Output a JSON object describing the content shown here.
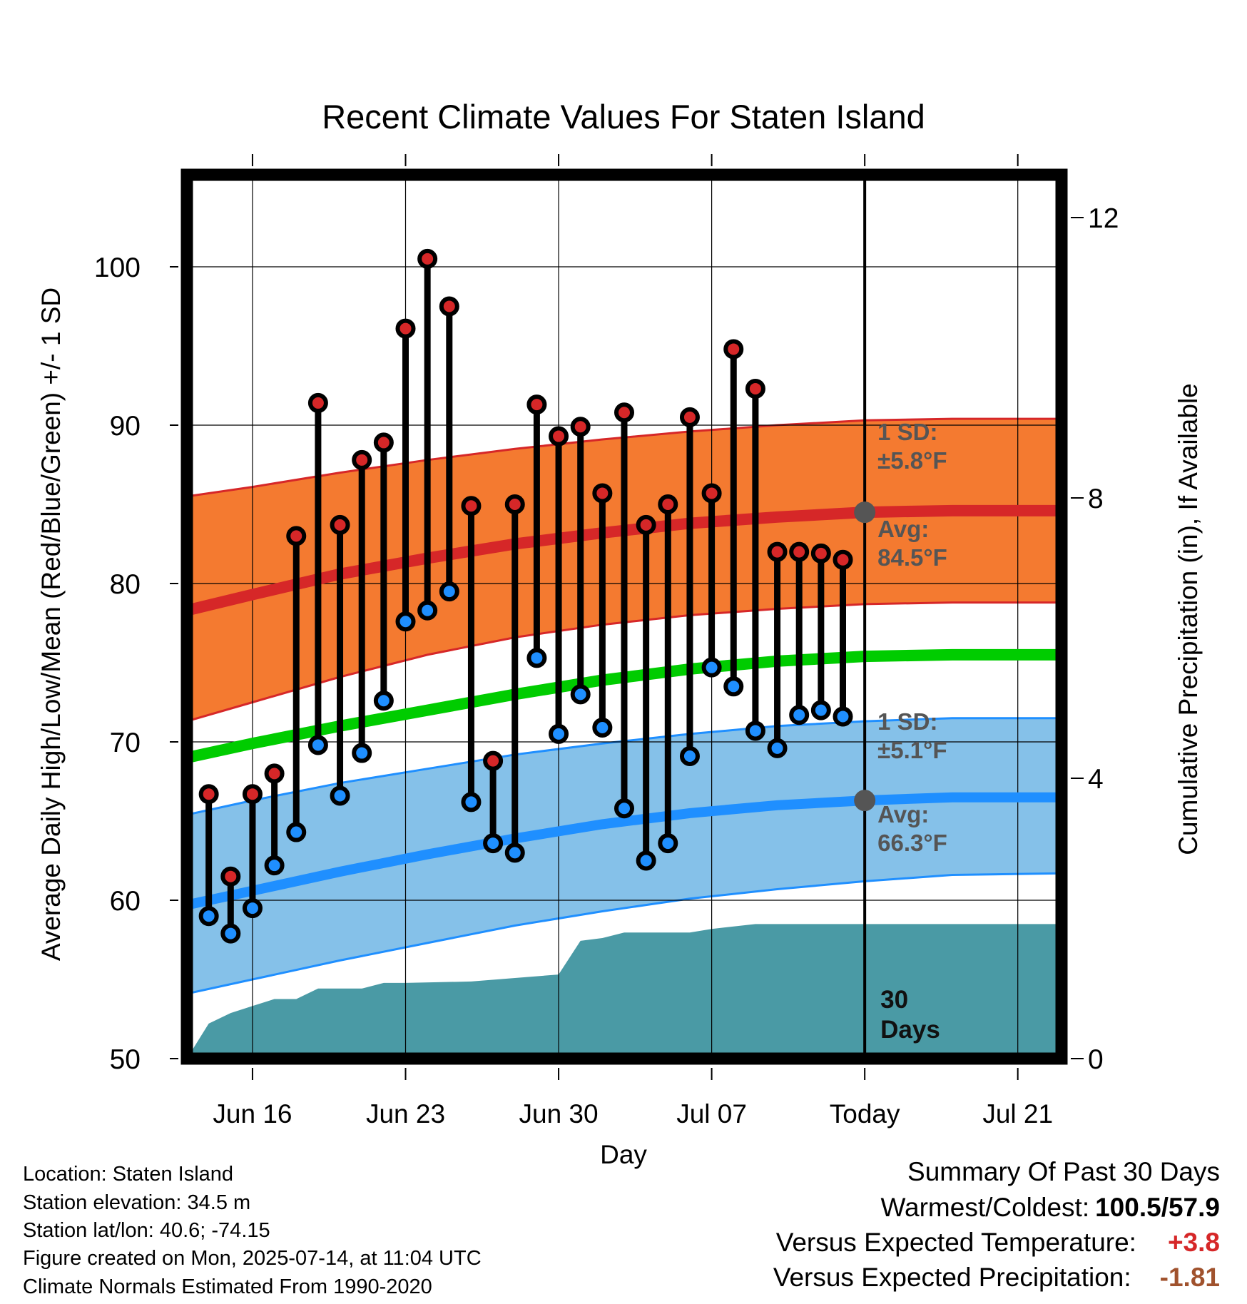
{
  "chart_data": {
    "type": "line",
    "title": "Recent Climate Values For Staten Island",
    "xlabel": "Day",
    "ylabel": "Average Daily High/Low/Mean (Red/Blue/Green) +/- 1 SD",
    "y2label": "Cumulative Precipitation (in), If Available",
    "ylim": [
      50,
      105
    ],
    "y2lim": [
      0,
      16
    ],
    "yticks": [
      50,
      60,
      70,
      80,
      90,
      100
    ],
    "y2ticks": [
      0,
      4,
      8,
      12
    ],
    "xticks": [
      "Jun 16",
      "Jun 23",
      "Jun 30",
      "Jul 07",
      "Today",
      "Jul 21"
    ],
    "x_start": "2025-06-13",
    "x_end": "2025-07-23",
    "today": "2025-07-14",
    "grid": true,
    "series": [
      {
        "name": "Daily High",
        "color": "#d62728",
        "x": [
          "2025-06-14",
          "2025-06-15",
          "2025-06-16",
          "2025-06-17",
          "2025-06-18",
          "2025-06-19",
          "2025-06-20",
          "2025-06-21",
          "2025-06-22",
          "2025-06-23",
          "2025-06-24",
          "2025-06-25",
          "2025-06-26",
          "2025-06-27",
          "2025-06-28",
          "2025-06-29",
          "2025-06-30",
          "2025-07-01",
          "2025-07-02",
          "2025-07-03",
          "2025-07-04",
          "2025-07-05",
          "2025-07-06",
          "2025-07-07",
          "2025-07-08",
          "2025-07-09",
          "2025-07-10",
          "2025-07-11",
          "2025-07-12",
          "2025-07-13"
        ],
        "values": [
          66.7,
          61.5,
          66.7,
          68.0,
          83.0,
          91.4,
          83.7,
          87.8,
          88.9,
          96.1,
          100.5,
          97.5,
          84.9,
          68.8,
          85.0,
          91.3,
          89.3,
          89.9,
          85.7,
          90.8,
          83.7,
          85.0,
          90.5,
          85.7,
          94.8,
          92.3,
          82.0,
          82.0,
          81.9,
          81.5
        ]
      },
      {
        "name": "Daily Low",
        "color": "#1f8fff",
        "x": [
          "2025-06-14",
          "2025-06-15",
          "2025-06-16",
          "2025-06-17",
          "2025-06-18",
          "2025-06-19",
          "2025-06-20",
          "2025-06-21",
          "2025-06-22",
          "2025-06-23",
          "2025-06-24",
          "2025-06-25",
          "2025-06-26",
          "2025-06-27",
          "2025-06-28",
          "2025-06-29",
          "2025-06-30",
          "2025-07-01",
          "2025-07-02",
          "2025-07-03",
          "2025-07-04",
          "2025-07-05",
          "2025-07-06",
          "2025-07-07",
          "2025-07-08",
          "2025-07-09",
          "2025-07-10",
          "2025-07-11",
          "2025-07-12",
          "2025-07-13"
        ],
        "values": [
          59.0,
          57.9,
          59.5,
          62.2,
          64.3,
          69.8,
          66.6,
          69.3,
          72.6,
          77.6,
          78.3,
          79.5,
          66.2,
          63.6,
          63.0,
          75.3,
          70.5,
          73.0,
          70.9,
          65.8,
          62.5,
          63.6,
          69.1,
          74.7,
          73.5,
          70.7,
          69.6,
          71.7,
          72.0,
          71.6
        ]
      },
      {
        "name": "Normal High",
        "color": "#d62728",
        "x": [
          "2025-06-13",
          "2025-06-16",
          "2025-06-20",
          "2025-06-24",
          "2025-06-28",
          "2025-07-02",
          "2025-07-06",
          "2025-07-10",
          "2025-07-14",
          "2025-07-18",
          "2025-07-23"
        ],
        "values": [
          78.3,
          79.3,
          80.6,
          81.6,
          82.5,
          83.2,
          83.8,
          84.2,
          84.5,
          84.6,
          84.6
        ]
      },
      {
        "name": "Normal High +1 SD",
        "color": "#d62728",
        "x": [
          "2025-06-13",
          "2025-06-16",
          "2025-06-20",
          "2025-06-24",
          "2025-06-28",
          "2025-07-02",
          "2025-07-06",
          "2025-07-10",
          "2025-07-14",
          "2025-07-18",
          "2025-07-23"
        ],
        "values": [
          85.5,
          86.1,
          87.0,
          87.8,
          88.5,
          89.1,
          89.6,
          90.0,
          90.3,
          90.4,
          90.4
        ]
      },
      {
        "name": "Normal High -1 SD",
        "color": "#d62728",
        "x": [
          "2025-06-13",
          "2025-06-16",
          "2025-06-20",
          "2025-06-24",
          "2025-06-28",
          "2025-07-02",
          "2025-07-06",
          "2025-07-10",
          "2025-07-14",
          "2025-07-18",
          "2025-07-23"
        ],
        "values": [
          71.3,
          72.5,
          74.1,
          75.5,
          76.6,
          77.4,
          78.0,
          78.4,
          78.7,
          78.8,
          78.8
        ]
      },
      {
        "name": "Normal Mean",
        "color": "#00cc00",
        "x": [
          "2025-06-13",
          "2025-06-16",
          "2025-06-20",
          "2025-06-24",
          "2025-06-28",
          "2025-07-02",
          "2025-07-06",
          "2025-07-10",
          "2025-07-14",
          "2025-07-18",
          "2025-07-23"
        ],
        "values": [
          69.0,
          69.9,
          71.0,
          72.0,
          73.0,
          73.9,
          74.6,
          75.1,
          75.4,
          75.5,
          75.5
        ]
      },
      {
        "name": "Normal Low",
        "color": "#1f8fff",
        "x": [
          "2025-06-13",
          "2025-06-16",
          "2025-06-20",
          "2025-06-24",
          "2025-06-28",
          "2025-07-02",
          "2025-07-06",
          "2025-07-10",
          "2025-07-14",
          "2025-07-18",
          "2025-07-23"
        ],
        "values": [
          59.7,
          60.6,
          61.8,
          62.9,
          63.9,
          64.8,
          65.5,
          66.0,
          66.3,
          66.5,
          66.5
        ]
      },
      {
        "name": "Normal Low +1 SD",
        "color": "#1f8fff",
        "x": [
          "2025-06-13",
          "2025-06-16",
          "2025-06-20",
          "2025-06-24",
          "2025-06-28",
          "2025-07-02",
          "2025-07-06",
          "2025-07-10",
          "2025-07-14",
          "2025-07-18",
          "2025-07-23"
        ],
        "values": [
          65.4,
          66.3,
          67.4,
          68.3,
          69.2,
          69.9,
          70.5,
          71.0,
          71.3,
          71.5,
          71.5
        ]
      },
      {
        "name": "Normal Low -1 SD",
        "color": "#1f8fff",
        "x": [
          "2025-06-13",
          "2025-06-16",
          "2025-06-20",
          "2025-06-24",
          "2025-06-28",
          "2025-07-02",
          "2025-07-06",
          "2025-07-10",
          "2025-07-14",
          "2025-07-18",
          "2025-07-23"
        ],
        "values": [
          54.1,
          55.0,
          56.2,
          57.3,
          58.4,
          59.3,
          60.1,
          60.7,
          61.2,
          61.6,
          61.7
        ]
      },
      {
        "name": "Cumulative Precipitation",
        "color": "#4a9aa5",
        "axis": "right",
        "x": [
          "2025-06-13",
          "2025-06-14",
          "2025-06-15",
          "2025-06-16",
          "2025-06-17",
          "2025-06-18",
          "2025-06-19",
          "2025-06-20",
          "2025-06-21",
          "2025-06-22",
          "2025-06-23",
          "2025-06-26",
          "2025-06-28",
          "2025-06-30",
          "2025-07-01",
          "2025-07-02",
          "2025-07-03",
          "2025-07-06",
          "2025-07-07",
          "2025-07-09",
          "2025-07-23"
        ],
        "values": [
          0.0,
          0.5,
          0.65,
          0.75,
          0.85,
          0.85,
          1.0,
          1.0,
          1.0,
          1.08,
          1.08,
          1.1,
          1.15,
          1.2,
          1.68,
          1.72,
          1.8,
          1.8,
          1.85,
          1.92,
          1.92
        ]
      }
    ],
    "annotations": {
      "high_sd_label": "1 SD:",
      "high_sd_value": "±5.8°F",
      "high_avg_label": "Avg:",
      "high_avg_value": "84.5°F",
      "low_sd_label": "1 SD:",
      "low_sd_value": "±5.1°F",
      "low_avg_label": "Avg:",
      "low_avg_value": "66.3°F",
      "precip_days_number": "30",
      "precip_days_label": "Days",
      "today_high_avg": 84.5,
      "today_low_avg": 66.3
    },
    "colors": {
      "high_band": "#f47a30",
      "high_line": "#d62728",
      "low_band": "#85c1e9",
      "low_line": "#1f8fff",
      "mean_line": "#00cc00",
      "precip": "#4a9aa5",
      "annotation": "#555555"
    }
  },
  "info": {
    "location": "Location: Staten Island",
    "elevation": "Station elevation: 34.5 m",
    "latlon": "Station lat/lon: 40.6; -74.15",
    "created": "Figure created on Mon, 2025-07-14, at 11:04 UTC",
    "normals": "Climate Normals Estimated From 1990-2020"
  },
  "summary": {
    "heading": "Summary Of Past 30 Days",
    "warm_cold_label": "Warmest/Coldest:",
    "warm_cold_value": "100.5/57.9",
    "temp_label": "Versus Expected Temperature:",
    "temp_value": "+3.8",
    "temp_color": "#d62728",
    "precip_label": "Versus Expected Precipitation:",
    "precip_value": "-1.81",
    "precip_color": "#a0522d"
  }
}
